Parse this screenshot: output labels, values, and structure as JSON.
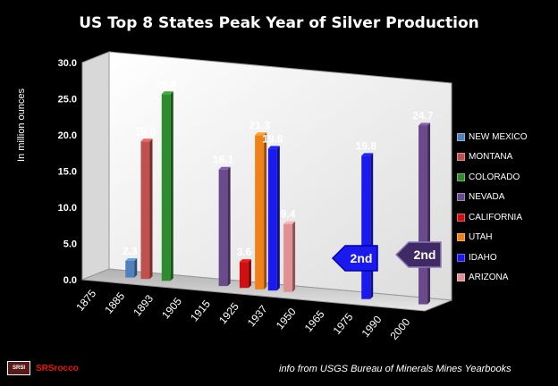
{
  "chart_data": {
    "type": "bar",
    "title": "US Top 8 States Peak Year of Silver  Production",
    "ylabel": "In  million ounces",
    "xlabel": "",
    "ylim": [
      0,
      30
    ],
    "yticks": [
      "0.0",
      "5.0",
      "10.0",
      "15.0",
      "20.0",
      "25.0",
      "30.0"
    ],
    "categories": [
      "1875",
      "1885",
      "1893",
      "1905",
      "1915",
      "1925",
      "1937",
      "1950",
      "1965",
      "1975",
      "1990",
      "2000"
    ],
    "series": [
      {
        "name": "NEW MEXICO",
        "color": "#4f81bd",
        "category": "1885",
        "value": 2.3,
        "label": "2.3"
      },
      {
        "name": "MONTANA",
        "color": "#c0504d",
        "category": "1885",
        "value": 19.0,
        "label": "19.0"
      },
      {
        "name": "COLORADO",
        "color": "#2e8b2e",
        "category": "1893",
        "value": 25.8,
        "label": "25.8"
      },
      {
        "name": "NEVADA",
        "color": "#6a4a8c",
        "category": "1915",
        "value": 16.1,
        "label": "16.1"
      },
      {
        "name": "CALIFORNIA",
        "color": "#d01010",
        "category": "1925",
        "value": 3.6,
        "label": "3.6"
      },
      {
        "name": "UTAH",
        "color": "#f08018",
        "category": "1925",
        "value": 21.3,
        "label": "21.3"
      },
      {
        "name": "IDAHO",
        "color": "#1a1aee",
        "category": "1937",
        "value": 19.6,
        "label": "19.6"
      },
      {
        "name": "ARIZONA",
        "color": "#e09090",
        "category": "1937",
        "value": 9.4,
        "label": "9.4"
      },
      {
        "name": "IDAHO",
        "color": "#1a1aee",
        "category": "1975",
        "value": 19.8,
        "label": "19.8"
      },
      {
        "name": "NEVADA",
        "color": "#6a4a8c",
        "category": "2000",
        "value": 24.7,
        "label": "24.7"
      }
    ],
    "legend": [
      {
        "name": "NEW MEXICO",
        "color": "#4f81bd"
      },
      {
        "name": "MONTANA",
        "color": "#c0504d"
      },
      {
        "name": "COLORADO",
        "color": "#2e8b2e"
      },
      {
        "name": "NEVADA",
        "color": "#6a4a8c"
      },
      {
        "name": "CALIFORNIA",
        "color": "#d01010"
      },
      {
        "name": "UTAH",
        "color": "#f08018"
      },
      {
        "name": "IDAHO",
        "color": "#1a1aee"
      },
      {
        "name": "ARIZONA",
        "color": "#e09090"
      }
    ],
    "legend_position": "right",
    "annotations": [
      {
        "text": "2nd",
        "style": "blue-arrow",
        "series": "IDAHO"
      },
      {
        "text": "2nd",
        "style": "purple-arrow",
        "series": "NEVADA"
      }
    ],
    "grid": false
  },
  "footer": {
    "source": "info from  USGS Bureau of Minerals Mines Yearbooks",
    "logo_box": "SRSI",
    "logo_text": "SRSrocco"
  }
}
